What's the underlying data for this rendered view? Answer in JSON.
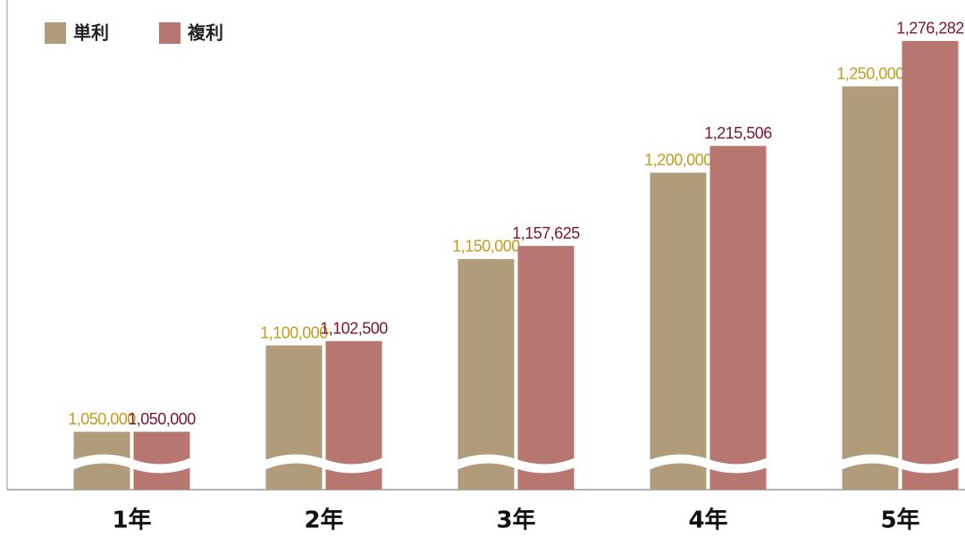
{
  "chart_data": {
    "type": "bar",
    "categories": [
      "1年",
      "2年",
      "3年",
      "4年",
      "5年"
    ],
    "series": [
      {
        "name": "単利",
        "color": "#b09c7b",
        "label_color": "#c49a1c",
        "values": [
          1050000,
          1100000,
          1150000,
          1200000,
          1250000
        ],
        "value_labels": [
          "1,050,000",
          "1,100,000",
          "1,150,000",
          "1,200,000",
          "1,250,000"
        ]
      },
      {
        "name": "複利",
        "color": "#b87670",
        "label_color": "#7a1530",
        "values": [
          1050000,
          1102500,
          1157625,
          1215506,
          1276282
        ],
        "value_labels": [
          "1,050,000",
          "1,102,500",
          "1,157,625",
          "1,215,506",
          "1,276,282"
        ]
      }
    ],
    "ylim": [
      1016500,
      1300000
    ]
  }
}
